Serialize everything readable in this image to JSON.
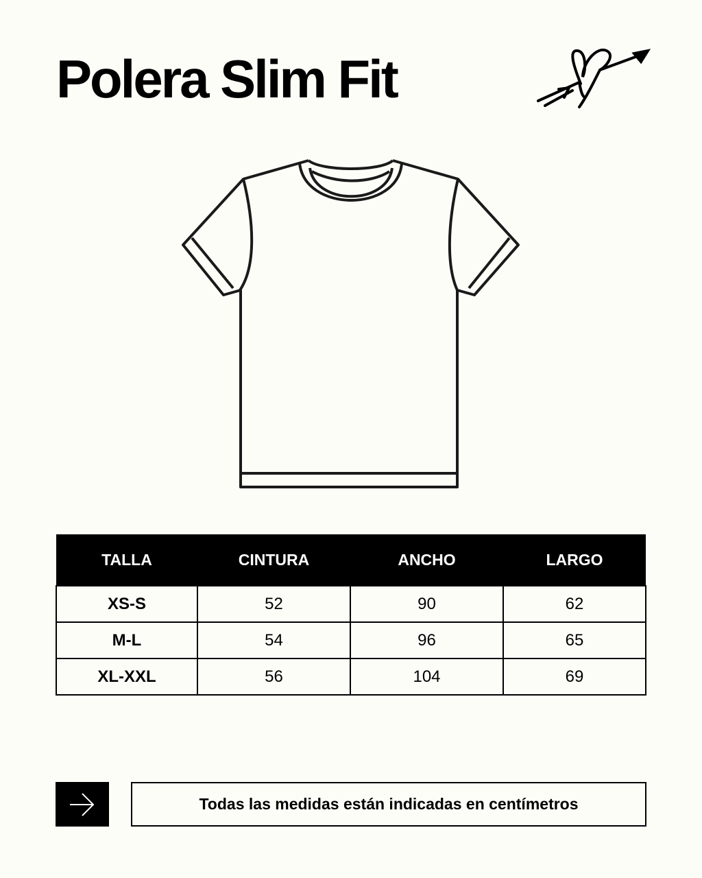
{
  "title": "Polera Slim Fit",
  "logo": {
    "icon": "heart-arrow-icon"
  },
  "illustration": {
    "icon": "tshirt-outline-icon"
  },
  "size_table": {
    "headers": [
      "TALLA",
      "CINTURA",
      "ANCHO",
      "LARGO"
    ],
    "rows": [
      [
        "XS-S",
        "52",
        "90",
        "62"
      ],
      [
        "M-L",
        "54",
        "96",
        "65"
      ],
      [
        "XL-XXL",
        "56",
        "104",
        "69"
      ]
    ]
  },
  "footer": {
    "icon": "arrow-right-icon",
    "note": "Todas las medidas están indicadas en centímetros"
  },
  "colors": {
    "background": "#fdfdf8",
    "ink": "#000000"
  }
}
